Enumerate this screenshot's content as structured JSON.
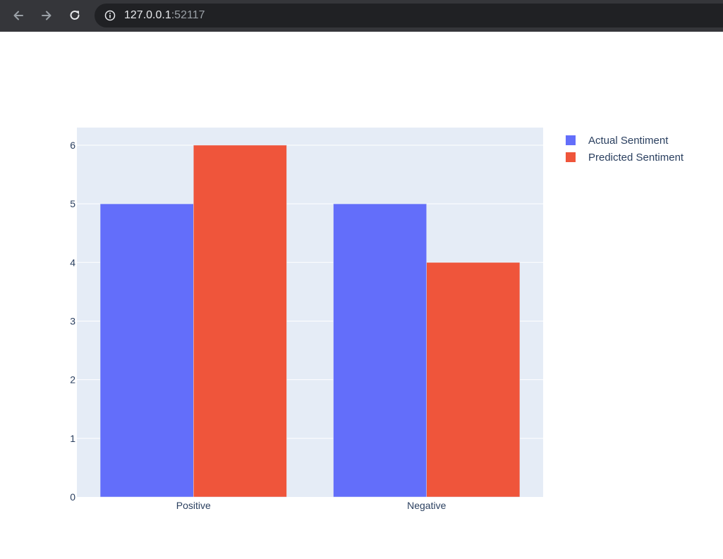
{
  "browser": {
    "url_host": "127.0.0.1",
    "url_port": ":52117",
    "icons": {
      "back": "arrow-left-icon",
      "forward": "arrow-right-icon",
      "reload": "reload-icon",
      "info": "info-icon"
    },
    "colors": {
      "bar": "#35363a",
      "omnibox": "#202124",
      "text": "#e8eaed",
      "muted": "#9aa0a6"
    }
  },
  "chart_data": {
    "type": "bar",
    "categories": [
      "Positive",
      "Negative"
    ],
    "series": [
      {
        "name": "Actual Sentiment",
        "values": [
          5,
          5
        ],
        "color": "#636efa"
      },
      {
        "name": "Predicted Sentiment",
        "values": [
          6,
          4
        ],
        "color": "#ef553b"
      }
    ],
    "yticks": [
      0,
      1,
      2,
      3,
      4,
      5,
      6
    ],
    "ylim": [
      0,
      6.3
    ],
    "grid": true,
    "legend_position": "top-right",
    "plot_background": "#e5ecf6"
  }
}
